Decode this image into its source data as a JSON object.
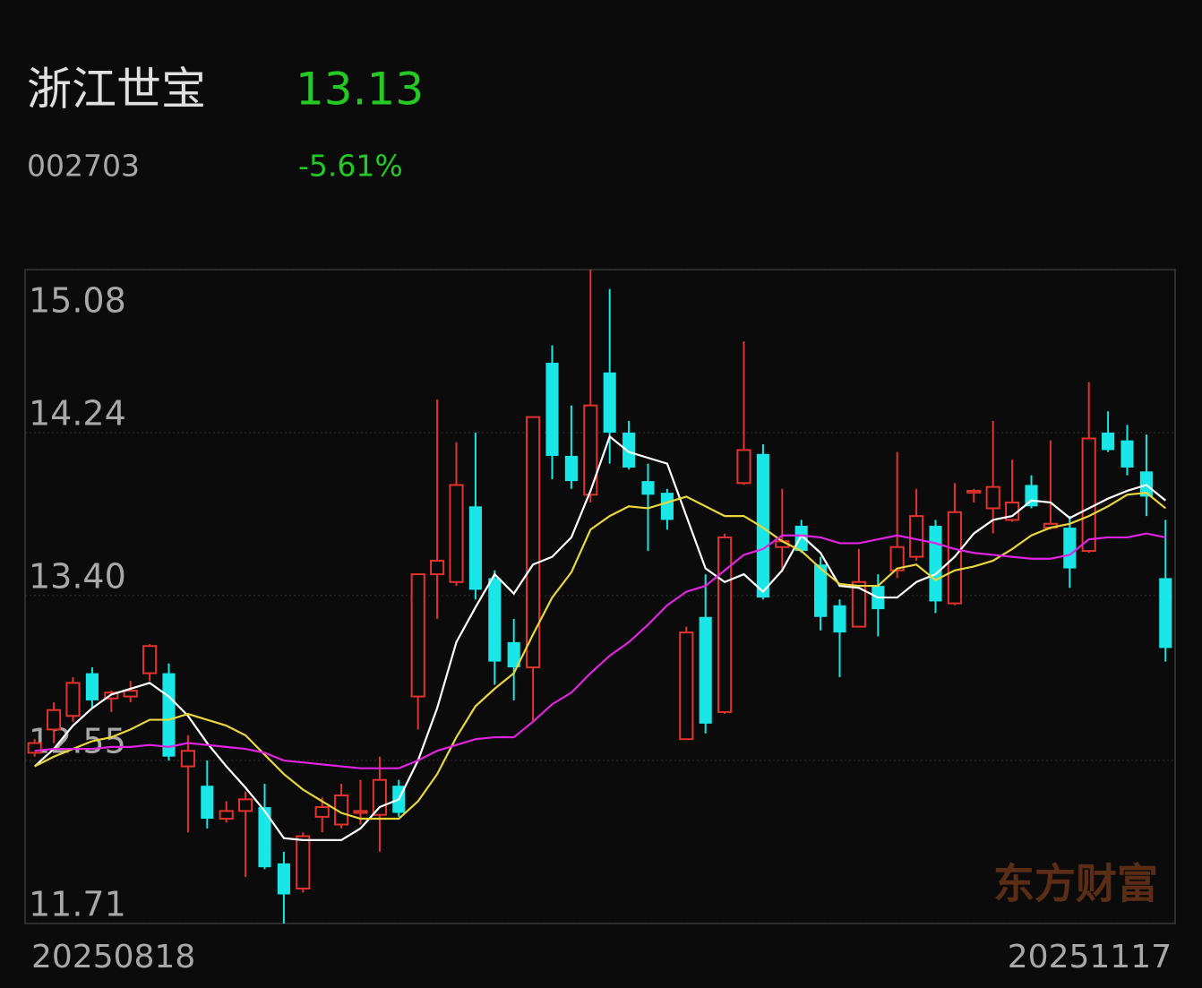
{
  "header": {
    "name": "浙江世宝",
    "price": "13.13",
    "code": "002703",
    "change": "-5.61%"
  },
  "watermark": "东方财富",
  "chart_data": {
    "type": "candlestick",
    "categories": [
      "20250818",
      null,
      null,
      null,
      null,
      null,
      null,
      null,
      null,
      null,
      null,
      null,
      null,
      null,
      null,
      null,
      null,
      null,
      null,
      null,
      null,
      null,
      null,
      null,
      null,
      null,
      null,
      null,
      null,
      null,
      null,
      null,
      null,
      null,
      null,
      null,
      null,
      null,
      null,
      null,
      null,
      null,
      null,
      null,
      null,
      null,
      null,
      null,
      null,
      null,
      null,
      null,
      null,
      null,
      null,
      null,
      null,
      null,
      null,
      "20251117"
    ],
    "open": [
      12.59,
      12.71,
      12.78,
      13.0,
      12.87,
      12.88,
      13.0,
      13.0,
      12.52,
      12.42,
      12.25,
      12.29,
      12.31,
      12.02,
      11.89,
      12.26,
      12.22,
      12.28,
      12.27,
      12.42,
      12.88,
      13.51,
      13.47,
      13.86,
      13.49,
      13.16,
      13.03,
      14.6,
      14.12,
      13.92,
      14.55,
      14.24,
      13.99,
      13.93,
      12.66,
      13.29,
      12.8,
      13.98,
      14.13,
      13.65,
      13.76,
      13.56,
      13.35,
      13.24,
      13.45,
      13.53,
      13.6,
      13.76,
      13.36,
      13.93,
      13.85,
      13.79,
      13.97,
      13.75,
      13.75,
      13.63,
      14.24,
      14.2,
      14.04,
      13.49
    ],
    "high": [
      12.66,
      12.85,
      12.98,
      13.03,
      12.91,
      12.96,
      13.15,
      13.05,
      12.68,
      12.55,
      12.34,
      12.39,
      12.43,
      12.08,
      12.18,
      12.36,
      12.43,
      12.45,
      12.57,
      12.45,
      13.51,
      14.41,
      14.19,
      14.24,
      13.53,
      13.28,
      14.32,
      14.69,
      14.38,
      15.08,
      14.98,
      14.3,
      14.08,
      13.95,
      13.24,
      13.51,
      13.72,
      14.71,
      14.18,
      13.95,
      13.79,
      13.6,
      13.38,
      13.64,
      13.51,
      14.14,
      13.95,
      13.79,
      13.98,
      13.95,
      14.3,
      14.1,
      14.02,
      14.2,
      13.81,
      14.5,
      14.35,
      14.28,
      14.23,
      13.79
    ],
    "low": [
      12.57,
      12.64,
      12.75,
      12.82,
      12.8,
      12.85,
      12.96,
      12.55,
      12.18,
      12.2,
      12.23,
      11.95,
      11.99,
      11.71,
      11.87,
      12.18,
      12.2,
      12.22,
      12.08,
      12.26,
      12.71,
      13.28,
      13.45,
      13.38,
      12.94,
      12.86,
      12.75,
      14.0,
      13.95,
      13.88,
      14.08,
      14.05,
      13.63,
      13.74,
      12.66,
      12.69,
      12.79,
      13.97,
      13.38,
      13.52,
      13.62,
      13.22,
      12.98,
      13.24,
      13.19,
      13.49,
      13.58,
      13.31,
      13.35,
      13.88,
      13.72,
      13.78,
      13.85,
      13.74,
      13.44,
      13.62,
      14.14,
      14.02,
      13.81,
      13.06
    ],
    "close": [
      12.64,
      12.81,
      12.95,
      12.86,
      12.9,
      12.91,
      13.14,
      12.57,
      12.6,
      12.25,
      12.29,
      12.35,
      12.0,
      11.86,
      12.16,
      12.31,
      12.37,
      12.29,
      12.45,
      12.28,
      13.51,
      13.58,
      13.97,
      13.43,
      13.06,
      13.03,
      14.32,
      14.12,
      13.99,
      14.38,
      14.24,
      14.06,
      13.92,
      13.79,
      13.21,
      12.74,
      13.7,
      14.15,
      13.39,
      13.68,
      13.63,
      13.29,
      13.21,
      13.47,
      13.33,
      13.65,
      13.81,
      13.37,
      13.83,
      13.94,
      13.96,
      13.88,
      13.86,
      13.77,
      13.54,
      14.21,
      14.15,
      14.06,
      13.91,
      13.13
    ],
    "up_color": "#e3332e",
    "down_color": "#19e6e6",
    "up_hollow": true,
    "lines": [
      {
        "color": "#ffffff",
        "values": [
          12.52,
          12.61,
          12.73,
          12.82,
          12.89,
          12.92,
          12.95,
          12.88,
          12.78,
          12.64,
          12.52,
          12.41,
          12.29,
          12.15,
          12.14,
          12.14,
          12.14,
          12.2,
          12.31,
          12.35,
          12.55,
          12.82,
          13.16,
          13.34,
          13.51,
          13.41,
          13.56,
          13.6,
          13.7,
          13.94,
          14.22,
          14.14,
          14.11,
          14.08,
          13.81,
          13.54,
          13.47,
          13.51,
          13.42,
          13.53,
          13.71,
          13.62,
          13.45,
          13.44,
          13.39,
          13.39,
          13.47,
          13.51,
          13.6,
          13.72,
          13.79,
          13.81,
          13.89,
          13.88,
          13.8,
          13.85,
          13.9,
          13.94,
          13.97,
          13.89
        ]
      },
      {
        "color": "#e8d63c",
        "values": [
          12.52,
          12.57,
          12.61,
          12.65,
          12.67,
          12.71,
          12.76,
          12.76,
          12.79,
          12.76,
          12.73,
          12.68,
          12.58,
          12.48,
          12.4,
          12.34,
          12.28,
          12.25,
          12.25,
          12.25,
          12.34,
          12.48,
          12.67,
          12.83,
          12.92,
          13.0,
          13.2,
          13.39,
          13.52,
          13.74,
          13.81,
          13.86,
          13.85,
          13.88,
          13.91,
          13.86,
          13.81,
          13.81,
          13.75,
          13.68,
          13.63,
          13.54,
          13.46,
          13.45,
          13.45,
          13.54,
          13.56,
          13.48,
          13.53,
          13.55,
          13.58,
          13.64,
          13.71,
          13.75,
          13.77,
          13.81,
          13.86,
          13.92,
          13.93,
          13.85
        ]
      },
      {
        "color": "#e024e0",
        "values": [
          12.6,
          12.61,
          12.61,
          12.61,
          12.62,
          12.62,
          12.63,
          12.62,
          12.64,
          12.63,
          12.62,
          12.61,
          12.59,
          12.55,
          12.54,
          12.53,
          12.52,
          12.51,
          12.51,
          12.51,
          12.55,
          12.6,
          12.63,
          12.66,
          12.67,
          12.67,
          12.75,
          12.84,
          12.9,
          13.0,
          13.09,
          13.16,
          13.25,
          13.35,
          13.42,
          13.45,
          13.53,
          13.61,
          13.64,
          13.71,
          13.71,
          13.7,
          13.67,
          13.67,
          13.69,
          13.71,
          13.69,
          13.67,
          13.64,
          13.62,
          13.61,
          13.6,
          13.59,
          13.59,
          13.61,
          13.69,
          13.7,
          13.7,
          13.72,
          13.7
        ]
      }
    ],
    "ylim": [
      11.71,
      15.08
    ],
    "yticks": [
      15.08,
      14.24,
      {
        "value": 13.4,
        "label": "13.40"
      },
      12.55,
      11.71
    ],
    "grid": true
  }
}
